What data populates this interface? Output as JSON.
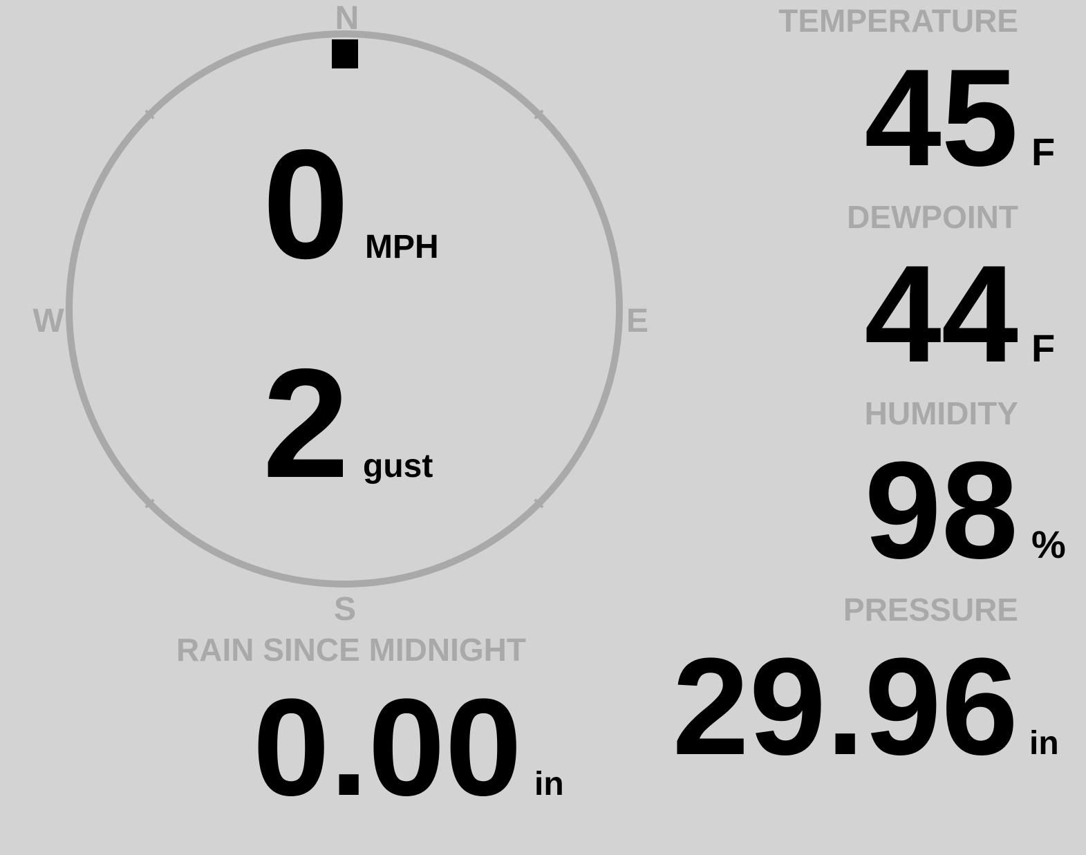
{
  "colors": {
    "background": "#d3d3d3",
    "muted": "#a9a9a9",
    "value": "#000000"
  },
  "wind": {
    "direction_degrees": 0,
    "compass": {
      "n": "N",
      "e": "E",
      "s": "S",
      "w": "W"
    },
    "speed": "0",
    "speed_unit": "MPH",
    "gust": "2",
    "gust_label": "gust"
  },
  "temperature": {
    "label": "TEMPERATURE",
    "value": "45",
    "unit": "F"
  },
  "dewpoint": {
    "label": "DEWPOINT",
    "value": "44",
    "unit": "F"
  },
  "humidity": {
    "label": "HUMIDITY",
    "value": "98",
    "unit": "%"
  },
  "pressure": {
    "label": "PRESSURE",
    "value": "29.96",
    "unit": "in"
  },
  "rain": {
    "label": "RAIN SINCE MIDNIGHT",
    "value": "0.00",
    "unit": "in"
  }
}
